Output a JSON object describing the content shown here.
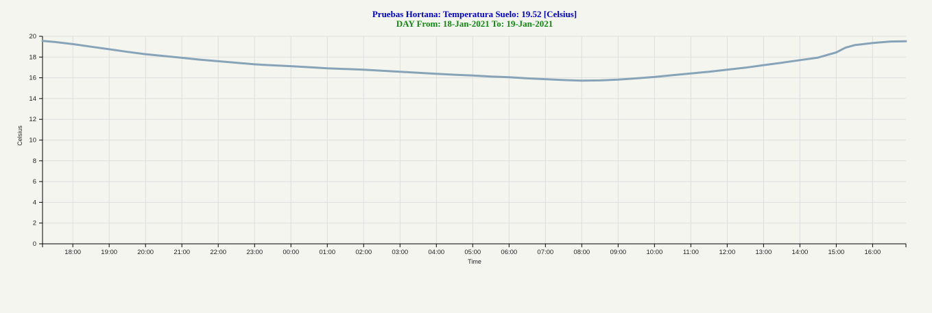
{
  "chart_data": {
    "type": "line",
    "title": "Pruebas Hortana: Temperatura Suelo: 19.52 [Celsius]",
    "subtitle": "DAY From: 18-Jan-2021 To: 19-Jan-2021",
    "xlabel": "Time",
    "ylabel": "Celsius",
    "x_ticks": [
      "18:00",
      "19:00",
      "20:00",
      "21:00",
      "22:00",
      "23:00",
      "00:00",
      "01:00",
      "02:00",
      "03:00",
      "04:00",
      "05:00",
      "06:00",
      "07:00",
      "08:00",
      "09:00",
      "10:00",
      "11:00",
      "12:00",
      "13:00",
      "14:00",
      "15:00",
      "16:00"
    ],
    "y_ticks": [
      0,
      2,
      4,
      6,
      8,
      10,
      12,
      14,
      16,
      18,
      20
    ],
    "ylim": [
      0,
      20
    ],
    "xlim": [
      "2021-01-18 17:10",
      "2021-01-19 16:55"
    ],
    "grid": true,
    "colors": {
      "title": "#0000cc",
      "subtitle": "#118811",
      "line": "#87a3b8",
      "axis": "#000000"
    },
    "series": [
      {
        "points": [
          [
            "2021-01-18 17:10",
            19.55
          ],
          [
            "2021-01-18 17:30",
            19.45
          ],
          [
            "2021-01-18 18:00",
            19.25
          ],
          [
            "2021-01-18 18:30",
            19.0
          ],
          [
            "2021-01-18 19:00",
            18.75
          ],
          [
            "2021-01-18 19:30",
            18.5
          ],
          [
            "2021-01-18 20:00",
            18.28
          ],
          [
            "2021-01-18 20:30",
            18.1
          ],
          [
            "2021-01-18 21:00",
            17.93
          ],
          [
            "2021-01-18 21:30",
            17.75
          ],
          [
            "2021-01-18 22:00",
            17.6
          ],
          [
            "2021-01-18 22:30",
            17.45
          ],
          [
            "2021-01-18 23:00",
            17.3
          ],
          [
            "2021-01-18 23:30",
            17.2
          ],
          [
            "2021-01-19 00:00",
            17.12
          ],
          [
            "2021-01-19 00:30",
            17.02
          ],
          [
            "2021-01-19 01:00",
            16.92
          ],
          [
            "2021-01-19 01:30",
            16.85
          ],
          [
            "2021-01-19 02:00",
            16.78
          ],
          [
            "2021-01-19 02:30",
            16.68
          ],
          [
            "2021-01-19 03:00",
            16.58
          ],
          [
            "2021-01-19 03:30",
            16.48
          ],
          [
            "2021-01-19 04:00",
            16.38
          ],
          [
            "2021-01-19 04:30",
            16.3
          ],
          [
            "2021-01-19 05:00",
            16.22
          ],
          [
            "2021-01-19 05:30",
            16.12
          ],
          [
            "2021-01-19 06:00",
            16.05
          ],
          [
            "2021-01-19 06:30",
            15.95
          ],
          [
            "2021-01-19 07:00",
            15.87
          ],
          [
            "2021-01-19 07:30",
            15.78
          ],
          [
            "2021-01-19 08:00",
            15.72
          ],
          [
            "2021-01-19 08:30",
            15.75
          ],
          [
            "2021-01-19 09:00",
            15.82
          ],
          [
            "2021-01-19 09:30",
            15.95
          ],
          [
            "2021-01-19 10:00",
            16.08
          ],
          [
            "2021-01-19 10:30",
            16.25
          ],
          [
            "2021-01-19 11:00",
            16.42
          ],
          [
            "2021-01-19 11:30",
            16.58
          ],
          [
            "2021-01-19 12:00",
            16.78
          ],
          [
            "2021-01-19 12:30",
            16.98
          ],
          [
            "2021-01-19 13:00",
            17.22
          ],
          [
            "2021-01-19 13:30",
            17.45
          ],
          [
            "2021-01-19 14:00",
            17.7
          ],
          [
            "2021-01-19 14:30",
            17.95
          ],
          [
            "2021-01-19 15:00",
            18.45
          ],
          [
            "2021-01-19 15:15",
            18.9
          ],
          [
            "2021-01-19 15:30",
            19.15
          ],
          [
            "2021-01-19 16:00",
            19.35
          ],
          [
            "2021-01-19 16:30",
            19.5
          ],
          [
            "2021-01-19 16:55",
            19.52
          ]
        ]
      }
    ]
  }
}
